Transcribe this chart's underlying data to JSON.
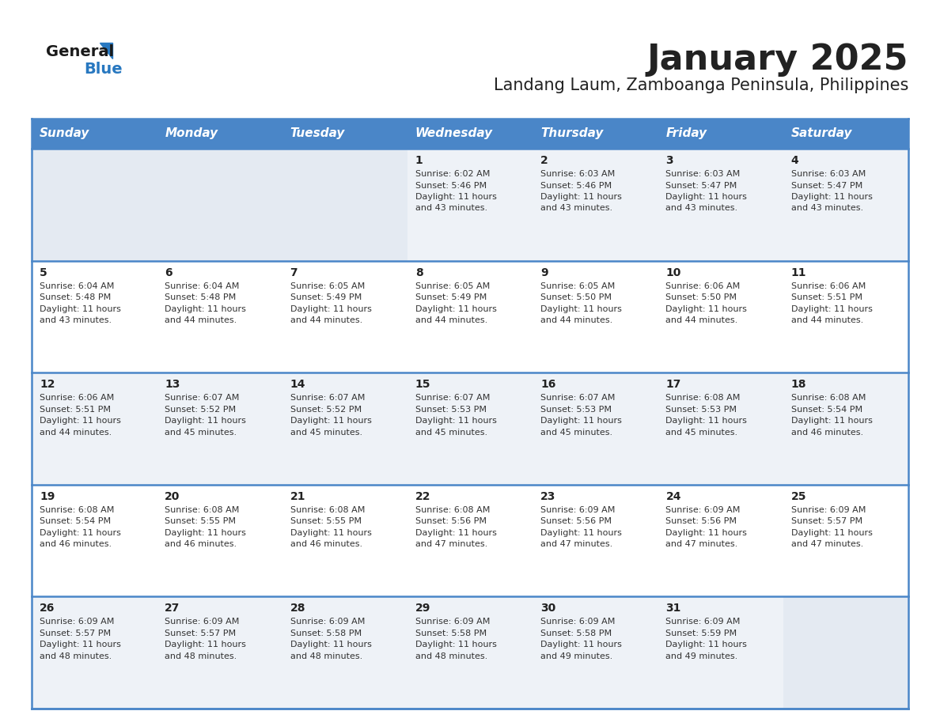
{
  "title": "January 2025",
  "subtitle": "Landang Laum, Zamboanga Peninsula, Philippines",
  "days_of_week": [
    "Sunday",
    "Monday",
    "Tuesday",
    "Wednesday",
    "Thursday",
    "Friday",
    "Saturday"
  ],
  "header_bg": "#4a86c8",
  "header_text_color": "#ffffff",
  "row_bg_odd": "#eef2f7",
  "row_bg_even": "#ffffff",
  "cell_bg_empty": "#e4eaf2",
  "border_color": "#4a86c8",
  "day_num_color": "#222222",
  "text_color": "#333333",
  "logo_general_color": "#1a1a1a",
  "logo_blue_color": "#2878c0",
  "title_fontsize": 32,
  "subtitle_fontsize": 15,
  "header_fontsize": 11,
  "day_num_fontsize": 10,
  "cell_text_fontsize": 8,
  "calendar_data": [
    {
      "day": 1,
      "col": 3,
      "row": 0,
      "sunrise": "6:02 AM",
      "sunset": "5:46 PM",
      "daylight_hours": 11,
      "daylight_minutes": 43
    },
    {
      "day": 2,
      "col": 4,
      "row": 0,
      "sunrise": "6:03 AM",
      "sunset": "5:46 PM",
      "daylight_hours": 11,
      "daylight_minutes": 43
    },
    {
      "day": 3,
      "col": 5,
      "row": 0,
      "sunrise": "6:03 AM",
      "sunset": "5:47 PM",
      "daylight_hours": 11,
      "daylight_minutes": 43
    },
    {
      "day": 4,
      "col": 6,
      "row": 0,
      "sunrise": "6:03 AM",
      "sunset": "5:47 PM",
      "daylight_hours": 11,
      "daylight_minutes": 43
    },
    {
      "day": 5,
      "col": 0,
      "row": 1,
      "sunrise": "6:04 AM",
      "sunset": "5:48 PM",
      "daylight_hours": 11,
      "daylight_minutes": 43
    },
    {
      "day": 6,
      "col": 1,
      "row": 1,
      "sunrise": "6:04 AM",
      "sunset": "5:48 PM",
      "daylight_hours": 11,
      "daylight_minutes": 44
    },
    {
      "day": 7,
      "col": 2,
      "row": 1,
      "sunrise": "6:05 AM",
      "sunset": "5:49 PM",
      "daylight_hours": 11,
      "daylight_minutes": 44
    },
    {
      "day": 8,
      "col": 3,
      "row": 1,
      "sunrise": "6:05 AM",
      "sunset": "5:49 PM",
      "daylight_hours": 11,
      "daylight_minutes": 44
    },
    {
      "day": 9,
      "col": 4,
      "row": 1,
      "sunrise": "6:05 AM",
      "sunset": "5:50 PM",
      "daylight_hours": 11,
      "daylight_minutes": 44
    },
    {
      "day": 10,
      "col": 5,
      "row": 1,
      "sunrise": "6:06 AM",
      "sunset": "5:50 PM",
      "daylight_hours": 11,
      "daylight_minutes": 44
    },
    {
      "day": 11,
      "col": 6,
      "row": 1,
      "sunrise": "6:06 AM",
      "sunset": "5:51 PM",
      "daylight_hours": 11,
      "daylight_minutes": 44
    },
    {
      "day": 12,
      "col": 0,
      "row": 2,
      "sunrise": "6:06 AM",
      "sunset": "5:51 PM",
      "daylight_hours": 11,
      "daylight_minutes": 44
    },
    {
      "day": 13,
      "col": 1,
      "row": 2,
      "sunrise": "6:07 AM",
      "sunset": "5:52 PM",
      "daylight_hours": 11,
      "daylight_minutes": 45
    },
    {
      "day": 14,
      "col": 2,
      "row": 2,
      "sunrise": "6:07 AM",
      "sunset": "5:52 PM",
      "daylight_hours": 11,
      "daylight_minutes": 45
    },
    {
      "day": 15,
      "col": 3,
      "row": 2,
      "sunrise": "6:07 AM",
      "sunset": "5:53 PM",
      "daylight_hours": 11,
      "daylight_minutes": 45
    },
    {
      "day": 16,
      "col": 4,
      "row": 2,
      "sunrise": "6:07 AM",
      "sunset": "5:53 PM",
      "daylight_hours": 11,
      "daylight_minutes": 45
    },
    {
      "day": 17,
      "col": 5,
      "row": 2,
      "sunrise": "6:08 AM",
      "sunset": "5:53 PM",
      "daylight_hours": 11,
      "daylight_minutes": 45
    },
    {
      "day": 18,
      "col": 6,
      "row": 2,
      "sunrise": "6:08 AM",
      "sunset": "5:54 PM",
      "daylight_hours": 11,
      "daylight_minutes": 46
    },
    {
      "day": 19,
      "col": 0,
      "row": 3,
      "sunrise": "6:08 AM",
      "sunset": "5:54 PM",
      "daylight_hours": 11,
      "daylight_minutes": 46
    },
    {
      "day": 20,
      "col": 1,
      "row": 3,
      "sunrise": "6:08 AM",
      "sunset": "5:55 PM",
      "daylight_hours": 11,
      "daylight_minutes": 46
    },
    {
      "day": 21,
      "col": 2,
      "row": 3,
      "sunrise": "6:08 AM",
      "sunset": "5:55 PM",
      "daylight_hours": 11,
      "daylight_minutes": 46
    },
    {
      "day": 22,
      "col": 3,
      "row": 3,
      "sunrise": "6:08 AM",
      "sunset": "5:56 PM",
      "daylight_hours": 11,
      "daylight_minutes": 47
    },
    {
      "day": 23,
      "col": 4,
      "row": 3,
      "sunrise": "6:09 AM",
      "sunset": "5:56 PM",
      "daylight_hours": 11,
      "daylight_minutes": 47
    },
    {
      "day": 24,
      "col": 5,
      "row": 3,
      "sunrise": "6:09 AM",
      "sunset": "5:56 PM",
      "daylight_hours": 11,
      "daylight_minutes": 47
    },
    {
      "day": 25,
      "col": 6,
      "row": 3,
      "sunrise": "6:09 AM",
      "sunset": "5:57 PM",
      "daylight_hours": 11,
      "daylight_minutes": 47
    },
    {
      "day": 26,
      "col": 0,
      "row": 4,
      "sunrise": "6:09 AM",
      "sunset": "5:57 PM",
      "daylight_hours": 11,
      "daylight_minutes": 48
    },
    {
      "day": 27,
      "col": 1,
      "row": 4,
      "sunrise": "6:09 AM",
      "sunset": "5:57 PM",
      "daylight_hours": 11,
      "daylight_minutes": 48
    },
    {
      "day": 28,
      "col": 2,
      "row": 4,
      "sunrise": "6:09 AM",
      "sunset": "5:58 PM",
      "daylight_hours": 11,
      "daylight_minutes": 48
    },
    {
      "day": 29,
      "col": 3,
      "row": 4,
      "sunrise": "6:09 AM",
      "sunset": "5:58 PM",
      "daylight_hours": 11,
      "daylight_minutes": 48
    },
    {
      "day": 30,
      "col": 4,
      "row": 4,
      "sunrise": "6:09 AM",
      "sunset": "5:58 PM",
      "daylight_hours": 11,
      "daylight_minutes": 49
    },
    {
      "day": 31,
      "col": 5,
      "row": 4,
      "sunrise": "6:09 AM",
      "sunset": "5:59 PM",
      "daylight_hours": 11,
      "daylight_minutes": 49
    }
  ]
}
